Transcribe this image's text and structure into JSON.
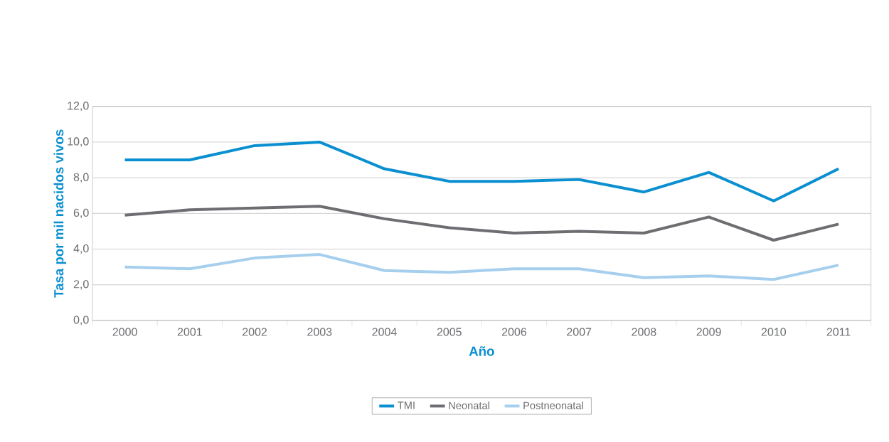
{
  "chart_data": {
    "type": "line",
    "xlabel": "Año",
    "ylabel": "Tasa por mil nacidos vivos",
    "categories": [
      "2000",
      "2001",
      "2002",
      "2003",
      "2004",
      "2005",
      "2006",
      "2007",
      "2008",
      "2009",
      "2010",
      "2011"
    ],
    "series": [
      {
        "name": "TMI",
        "color": "#0a8fd0",
        "values": [
          9.0,
          9.0,
          9.8,
          10.0,
          8.5,
          7.8,
          7.8,
          7.9,
          7.2,
          8.3,
          6.7,
          8.5
        ]
      },
      {
        "name": "Neonatal",
        "color": "#6d6e71",
        "values": [
          5.9,
          6.2,
          6.3,
          6.4,
          5.7,
          5.2,
          4.9,
          5.0,
          4.9,
          5.8,
          4.5,
          5.4
        ]
      },
      {
        "name": "Postneonatal",
        "color": "#a6cfee",
        "values": [
          3.0,
          2.9,
          3.5,
          3.7,
          2.8,
          2.7,
          2.9,
          2.9,
          2.4,
          2.5,
          2.3,
          3.1
        ]
      }
    ],
    "ylim": [
      0,
      12
    ],
    "yticks": [
      {
        "value": 0,
        "label": "0,0"
      },
      {
        "value": 2,
        "label": "2,0"
      },
      {
        "value": 4,
        "label": "4,0"
      },
      {
        "value": 6,
        "label": "6,0"
      },
      {
        "value": 8,
        "label": "8,0"
      },
      {
        "value": 10,
        "label": "10,0"
      },
      {
        "value": 12,
        "label": "12,0"
      }
    ],
    "grid": "y",
    "legend": "bottom",
    "marker": "none",
    "line_style": "solid"
  }
}
